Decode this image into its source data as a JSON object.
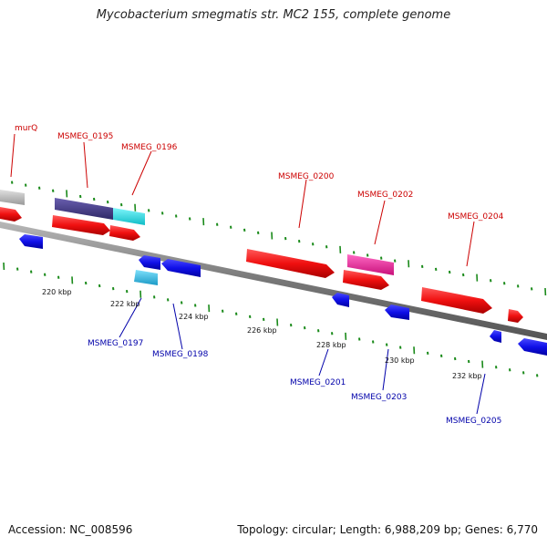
{
  "title": "Mycobacterium smegmatis str. MC2 155, complete genome",
  "footer": {
    "accession": "Accession: NC_008596",
    "summary": "Topology: circular; Length: 6,988,209 bp; Genes: 6,770"
  },
  "scale_labels": [
    "220 kbp",
    "222 kbp",
    "224 kbp",
    "226 kbp",
    "228 kbp",
    "230 kbp",
    "232 kbp"
  ],
  "labels_forward": [
    "murQ",
    "MSMEG_0195",
    "MSMEG_0196",
    "MSMEG_0200",
    "MSMEG_0202",
    "MSMEG_0204"
  ],
  "labels_reverse": [
    "MSMEG_0197",
    "MSMEG_0198",
    "MSMEG_0201",
    "MSMEG_0203",
    "MSMEG_0205"
  ],
  "colors": {
    "forward_gene": "#ff1a1a",
    "reverse_gene": "#1a1aee",
    "highlight_dark": "#4a3f8c",
    "highlight_cyan": "#22e4ee",
    "highlight_pink": "#ff2fa8",
    "highlight_gray": "#c4c4c4",
    "highlight_light_blue": "#33c8ee",
    "tick_color": "#1a8a1a",
    "backbone": "#888888"
  }
}
